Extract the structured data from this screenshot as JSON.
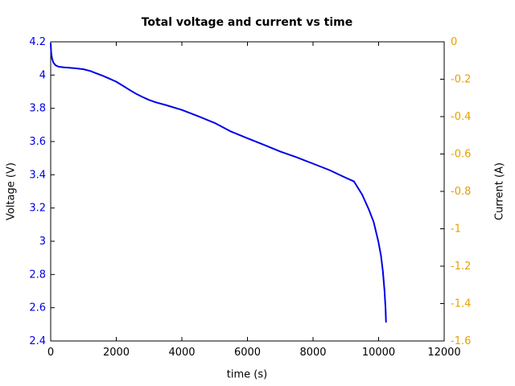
{
  "chart_data": {
    "type": "line",
    "title": "Total voltage and current vs time",
    "xlabel": "time (s)",
    "ylabel": "Voltage (V)",
    "y2label": "Current (A)",
    "xlim": [
      0,
      12000
    ],
    "ylim": [
      2.4,
      4.2
    ],
    "y2lim": [
      -1.6,
      0
    ],
    "xticks": [
      0,
      2000,
      4000,
      6000,
      8000,
      10000,
      12000
    ],
    "xtick_labels": [
      "0",
      "2000",
      "4000",
      "6000",
      "8000",
      "10000",
      "12000"
    ],
    "yticks": [
      2.4,
      2.6,
      2.8,
      3.0,
      3.2,
      3.4,
      3.6,
      3.8,
      4.0,
      4.2
    ],
    "ytick_labels": [
      "2.4",
      "2.6",
      "2.8",
      "3",
      "3.2",
      "3.4",
      "3.6",
      "3.8",
      "4",
      "4.2"
    ],
    "y2ticks": [
      0,
      -0.2,
      -0.4,
      -0.6,
      -0.8,
      -1.0,
      -1.2,
      -1.4,
      -1.6
    ],
    "y2tick_labels": [
      "0",
      "-0.2",
      "-0.4",
      "-0.6",
      "-0.8",
      "-1",
      "-1.2",
      "-1.4",
      "-1.6"
    ],
    "grid": false,
    "legend": "none",
    "colors": {
      "voltage_series": "#0000e6",
      "left_tick_labels": "#0000e6",
      "right_tick_labels": "#e8a000",
      "axis_frame": "#000000",
      "title": "#000000"
    },
    "series": [
      {
        "name": "Total voltage",
        "y_axis": "left",
        "color": "#0000e6",
        "points": [
          [
            0,
            4.19
          ],
          [
            15,
            4.135
          ],
          [
            40,
            4.102
          ],
          [
            80,
            4.075
          ],
          [
            150,
            4.058
          ],
          [
            250,
            4.05
          ],
          [
            400,
            4.046
          ],
          [
            600,
            4.043
          ],
          [
            800,
            4.04
          ],
          [
            1000,
            4.035
          ],
          [
            1200,
            4.025
          ],
          [
            1400,
            4.01
          ],
          [
            1600,
            3.995
          ],
          [
            1800,
            3.978
          ],
          [
            2000,
            3.96
          ],
          [
            2200,
            3.936
          ],
          [
            2400,
            3.911
          ],
          [
            2600,
            3.888
          ],
          [
            2800,
            3.868
          ],
          [
            3000,
            3.85
          ],
          [
            3200,
            3.836
          ],
          [
            3500,
            3.82
          ],
          [
            4000,
            3.79
          ],
          [
            4500,
            3.752
          ],
          [
            5000,
            3.712
          ],
          [
            5500,
            3.66
          ],
          [
            6000,
            3.62
          ],
          [
            6500,
            3.58
          ],
          [
            7000,
            3.54
          ],
          [
            7500,
            3.505
          ],
          [
            8000,
            3.467
          ],
          [
            8500,
            3.428
          ],
          [
            9000,
            3.382
          ],
          [
            9250,
            3.36
          ],
          [
            9500,
            3.28
          ],
          [
            9700,
            3.192
          ],
          [
            9850,
            3.115
          ],
          [
            9990,
            3.0
          ],
          [
            10070,
            2.915
          ],
          [
            10130,
            2.82
          ],
          [
            10180,
            2.705
          ],
          [
            10210,
            2.6
          ],
          [
            10225,
            2.515
          ]
        ]
      }
    ]
  }
}
